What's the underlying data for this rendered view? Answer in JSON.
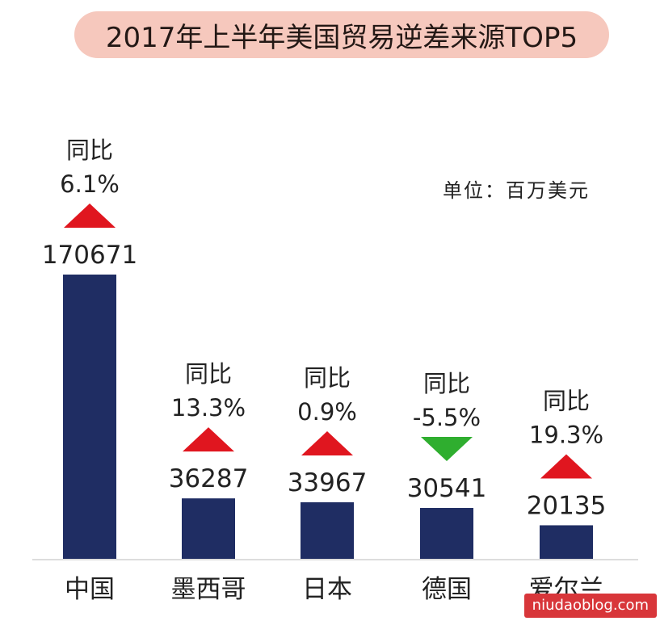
{
  "title": "2017年上半年美国贸易逆差来源TOP5",
  "unit_label": "单位：百万美元",
  "watermark": "niudaoblog.com",
  "colors": {
    "bar": "#1f2d63",
    "up": "#e0161f",
    "down": "#2fae2f",
    "title_bg": "#f6c8bd",
    "watermark_bg": "#d8363a"
  },
  "chart_data": {
    "type": "bar",
    "title": "2017年上半年美国贸易逆差来源TOP5",
    "ylabel": "",
    "xlabel": "",
    "unit": "百万美元",
    "categories": [
      "中国",
      "墨西哥",
      "日本",
      "德国",
      "爱尔兰"
    ],
    "values": [
      170671,
      36287,
      33967,
      30541,
      20135
    ],
    "yoy_label": "同比",
    "yoy": [
      "6.1%",
      "13.3%",
      "0.9%",
      "-5.5%",
      "19.3%"
    ],
    "yoy_direction": [
      "up",
      "up",
      "up",
      "down",
      "up"
    ],
    "ylim": [
      0,
      170671
    ],
    "grid": false,
    "legend": "none"
  }
}
